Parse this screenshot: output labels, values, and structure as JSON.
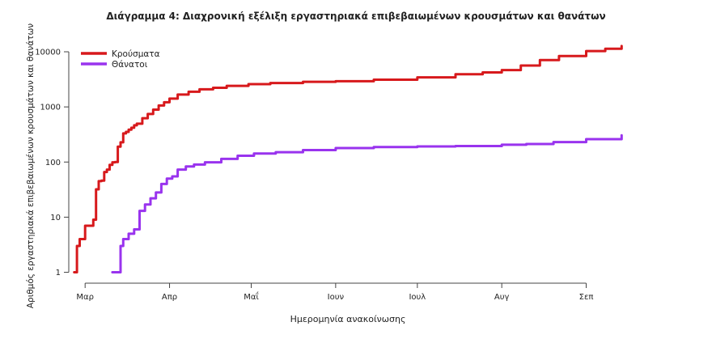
{
  "chart_data": {
    "type": "line",
    "title": "Διάγραμμα 4: Διαχρονική εξέλιξη εργαστηριακά επιβεβαιωμένων κρουσμάτων και θανάτων",
    "xlabel": "Ημερομηνία ανακοίνωσης",
    "ylabel": "Αριθμός εργαστηριακά επιβεβαιωμένων κρουσμάτων και θανάτων",
    "yscale": "log",
    "ylim": [
      1,
      15000
    ],
    "xlim": [
      "2020-02-24",
      "2020-09-16"
    ],
    "grid": false,
    "legend_position": "top-left",
    "x_ticks": [
      {
        "date": "2020-03-01",
        "label": "Μαρ"
      },
      {
        "date": "2020-04-01",
        "label": "Απρ"
      },
      {
        "date": "2020-05-01",
        "label": "Μαΐ"
      },
      {
        "date": "2020-06-01",
        "label": "Ιουν"
      },
      {
        "date": "2020-07-01",
        "label": "Ιουλ"
      },
      {
        "date": "2020-08-01",
        "label": "Αυγ"
      },
      {
        "date": "2020-09-01",
        "label": "Σεπ"
      }
    ],
    "y_ticks": [
      {
        "value": 1,
        "label": "1"
      },
      {
        "value": 10,
        "label": "10"
      },
      {
        "value": 100,
        "label": "100"
      },
      {
        "value": 1000,
        "label": "1000"
      },
      {
        "value": 10000,
        "label": "10000"
      }
    ],
    "series": [
      {
        "name": "Κρούσματα",
        "color": "#d7191c",
        "points": [
          [
            "2020-02-26",
            1
          ],
          [
            "2020-02-27",
            3
          ],
          [
            "2020-02-28",
            4
          ],
          [
            "2020-02-29",
            4
          ],
          [
            "2020-03-01",
            7
          ],
          [
            "2020-03-03",
            7
          ],
          [
            "2020-03-04",
            9
          ],
          [
            "2020-03-05",
            32
          ],
          [
            "2020-03-06",
            45
          ],
          [
            "2020-03-07",
            46
          ],
          [
            "2020-03-08",
            66
          ],
          [
            "2020-03-09",
            73
          ],
          [
            "2020-03-10",
            89
          ],
          [
            "2020-03-11",
            99
          ],
          [
            "2020-03-12",
            100
          ],
          [
            "2020-03-13",
            190
          ],
          [
            "2020-03-14",
            228
          ],
          [
            "2020-03-15",
            331
          ],
          [
            "2020-03-16",
            352
          ],
          [
            "2020-03-17",
            387
          ],
          [
            "2020-03-18",
            418
          ],
          [
            "2020-03-19",
            464
          ],
          [
            "2020-03-20",
            495
          ],
          [
            "2020-03-22",
            624
          ],
          [
            "2020-03-24",
            743
          ],
          [
            "2020-03-26",
            892
          ],
          [
            "2020-03-28",
            1061
          ],
          [
            "2020-03-30",
            1212
          ],
          [
            "2020-04-01",
            1415
          ],
          [
            "2020-04-04",
            1673
          ],
          [
            "2020-04-08",
            1884
          ],
          [
            "2020-04-12",
            2081
          ],
          [
            "2020-04-17",
            2224
          ],
          [
            "2020-04-22",
            2408
          ],
          [
            "2020-04-30",
            2591
          ],
          [
            "2020-05-08",
            2710
          ],
          [
            "2020-05-20",
            2850
          ],
          [
            "2020-06-01",
            2918
          ],
          [
            "2020-06-15",
            3121
          ],
          [
            "2020-07-01",
            3432
          ],
          [
            "2020-07-15",
            3910
          ],
          [
            "2020-07-25",
            4227
          ],
          [
            "2020-08-01",
            4662
          ],
          [
            "2020-08-08",
            5623
          ],
          [
            "2020-08-15",
            7075
          ],
          [
            "2020-08-22",
            8381
          ],
          [
            "2020-09-01",
            10317
          ],
          [
            "2020-09-08",
            11386
          ],
          [
            "2020-09-14",
            12730
          ]
        ]
      },
      {
        "name": "Θάνατοι",
        "color": "#9933ee",
        "points": [
          [
            "2020-03-11",
            1
          ],
          [
            "2020-03-13",
            1
          ],
          [
            "2020-03-14",
            3
          ],
          [
            "2020-03-15",
            4
          ],
          [
            "2020-03-17",
            5
          ],
          [
            "2020-03-18",
            5
          ],
          [
            "2020-03-19",
            6
          ],
          [
            "2020-03-20",
            6
          ],
          [
            "2020-03-21",
            13
          ],
          [
            "2020-03-23",
            17
          ],
          [
            "2020-03-25",
            22
          ],
          [
            "2020-03-27",
            28
          ],
          [
            "2020-03-29",
            40
          ],
          [
            "2020-03-31",
            50
          ],
          [
            "2020-04-02",
            55
          ],
          [
            "2020-04-04",
            73
          ],
          [
            "2020-04-07",
            83
          ],
          [
            "2020-04-10",
            90
          ],
          [
            "2020-04-14",
            99
          ],
          [
            "2020-04-20",
            114
          ],
          [
            "2020-04-26",
            130
          ],
          [
            "2020-05-02",
            143
          ],
          [
            "2020-05-10",
            151
          ],
          [
            "2020-05-20",
            165
          ],
          [
            "2020-06-01",
            179
          ],
          [
            "2020-06-15",
            187
          ],
          [
            "2020-07-01",
            192
          ],
          [
            "2020-07-15",
            195
          ],
          [
            "2020-08-01",
            206
          ],
          [
            "2020-08-10",
            212
          ],
          [
            "2020-08-20",
            230
          ],
          [
            "2020-09-01",
            260
          ],
          [
            "2020-09-14",
            305
          ]
        ]
      }
    ]
  }
}
